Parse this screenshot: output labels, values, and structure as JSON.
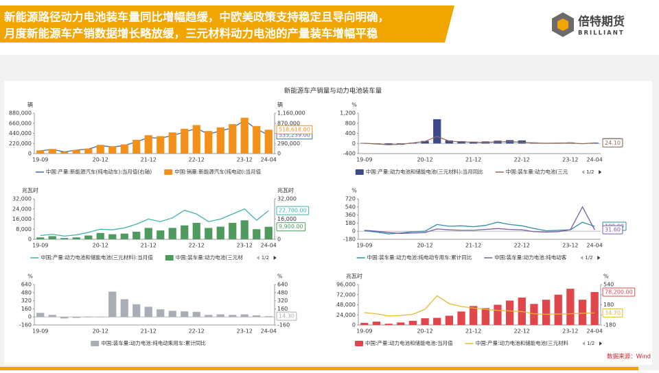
{
  "header": {
    "title_lines": [
      "新能源路径动力电池装车量同比增幅趋缓，中欧美政策支持稳定且导向明确，",
      "月度新能源车产销数据增长略放缓，三元材料动力电池的产量装车增幅平稳"
    ],
    "logo_name": "倍特期货",
    "logo_en": "BRILLIANT"
  },
  "chart_title": "新能源车产销量与动力电池装车量",
  "source": "数据来源：Wind",
  "chart_data": [
    {
      "type": "bar-line",
      "unit": "辆",
      "unit2": "辆",
      "categories": [
        "19-09",
        null,
        null,
        null,
        null,
        "20-12",
        null,
        null,
        null,
        "21-12",
        null,
        null,
        null,
        "22-12",
        null,
        null,
        null,
        "23-12",
        null,
        "24-04"
      ],
      "ylim": [
        0,
        880000
      ],
      "yticks": [
        0,
        {
          "value": 220000,
          "label": "220,000"
        },
        {
          "value": 440000,
          "label": "440,000"
        },
        {
          "value": 660000,
          "label": "660,000"
        },
        {
          "value": 880000,
          "label": "880,000"
        }
      ],
      "y2lim": [
        0,
        1160000
      ],
      "y2ticks": [
        0,
        {
          "value": 290000,
          "label": "290,000"
        },
        {
          "value": 580000,
          "label": "580,000"
        },
        {
          "value": 870000,
          "label": "870,000"
        },
        {
          "value": 1160000,
          "label": "1,160,000"
        }
      ],
      "series": [
        {
          "name": "中国:产量:新能源汽车(纯电动车):当月值(右轴)",
          "type": "line",
          "axis": "y2",
          "color": "#3a6ea5",
          "values": [
            80000,
            120000,
            50000,
            100000,
            130000,
            230000,
            190000,
            230000,
            340000,
            460000,
            440000,
            520000,
            620000,
            720000,
            560000,
            650000,
            740000,
            950000,
            700000,
            535239
          ],
          "value_label": "535,239.00"
        },
        {
          "name": "中国:销量:新能源汽车(纯电动):当月值",
          "type": "bar",
          "color": "#f39019",
          "values": [
            70000,
            100000,
            40000,
            80000,
            110000,
            190000,
            160000,
            200000,
            300000,
            400000,
            380000,
            460000,
            540000,
            620000,
            490000,
            570000,
            640000,
            780000,
            600000,
            518618
          ],
          "value_label": "518,618.00"
        }
      ]
    },
    {
      "type": "bar-line",
      "unit": "%",
      "legend_page": "1/2",
      "categories": [
        "19-09",
        null,
        null,
        null,
        null,
        "20-12",
        null,
        null,
        null,
        "21-12",
        null,
        null,
        null,
        "22-12",
        null,
        null,
        null,
        "23-12",
        null,
        "24-04"
      ],
      "ylim": [
        -400,
        1200
      ],
      "yticks": [
        -400,
        0,
        400,
        800,
        {
          "value": 1200,
          "label": "1,200"
        }
      ],
      "series": [
        {
          "name": "中国:产量:动力电池和储能电池(三元材料):当月同比",
          "type": "bar",
          "color": "#3d4a8a",
          "values": [
            20,
            -30,
            -60,
            -50,
            30,
            100,
            960,
            120,
            90,
            70,
            80,
            110,
            130,
            120,
            40,
            20,
            30,
            40,
            -20,
            30
          ],
          "value_label": "30.00"
        },
        {
          "name": "中国:装车量:动力电池(三元",
          "type": "line",
          "color": "#8a6a5a",
          "values": [
            10,
            -20,
            -50,
            -30,
            20,
            80,
            280,
            90,
            60,
            50,
            40,
            60,
            70,
            50,
            20,
            10,
            15,
            20,
            -10,
            24.1
          ],
          "value_label": "24.10"
        }
      ]
    },
    {
      "type": "bar-line",
      "unit": "兆瓦时",
      "unit2": "兆瓦时",
      "legend_page": "1/2",
      "categories": [
        "19-09",
        null,
        null,
        null,
        null,
        "20-12",
        null,
        null,
        null,
        "21-12",
        null,
        null,
        null,
        "22-12",
        null,
        null,
        null,
        "23-12",
        null,
        "24-04"
      ],
      "ylim": [
        0,
        32000
      ],
      "yticks": [
        0,
        {
          "value": 8000,
          "label": "8,000"
        },
        {
          "value": 16000,
          "label": "16,000"
        },
        {
          "value": 24000,
          "label": "24,000"
        },
        {
          "value": 32000,
          "label": "32,000"
        }
      ],
      "y2lim": [
        0,
        32000
      ],
      "y2ticks": [
        0,
        {
          "value": 16000,
          "label": "16,000"
        },
        {
          "value": 32000,
          "label": "32,000"
        }
      ],
      "series": [
        {
          "name": "中国:产量:动力电池和储能电池(三元材料):当月值",
          "type": "line",
          "axis": "y2",
          "color": "#3fb2b0",
          "values": [
            3000,
            4000,
            2500,
            3500,
            5500,
            8000,
            7500,
            9000,
            12000,
            16000,
            14000,
            17000,
            23000,
            20000,
            14000,
            16000,
            20000,
            24000,
            15000,
            22700
          ],
          "value_label": "22,700.00"
        },
        {
          "name": "中国:装车量:动力电池(三元材",
          "type": "bar",
          "color": "#4f9a5f",
          "values": [
            1500,
            2500,
            1000,
            1500,
            3000,
            5000,
            4000,
            4500,
            6000,
            9000,
            7000,
            9000,
            11000,
            13000,
            9000,
            10000,
            13000,
            15000,
            8000,
            9900
          ],
          "value_label": "9,900.00"
        }
      ]
    },
    {
      "type": "line",
      "unit": "%",
      "legend_page": "1/2",
      "categories": [
        "19-09",
        null,
        null,
        null,
        null,
        "20-12",
        null,
        null,
        null,
        "21-12",
        null,
        null,
        null,
        "22-12",
        null,
        null,
        null,
        "23-12",
        null,
        "24-04"
      ],
      "ylim": [
        -180,
        720
      ],
      "yticks": [
        -180,
        0,
        180,
        360,
        540,
        720
      ],
      "series": [
        {
          "name": "中国:装车量:动力电池:纯电动专用车:累计同比",
          "type": "line",
          "color": "#2f8fa8",
          "values": [
            10,
            -20,
            -60,
            -40,
            -10,
            0,
            150,
            110,
            120,
            100,
            130,
            200,
            150,
            120,
            60,
            10,
            20,
            30,
            200,
            109
          ],
          "value_label": "109.00"
        },
        {
          "name": "中国:装车量:动力电池:纯电动客",
          "type": "line",
          "color": "#7a5aa8",
          "values": [
            20,
            0,
            -30,
            -50,
            -40,
            -30,
            50,
            30,
            20,
            20,
            40,
            60,
            40,
            30,
            -10,
            -20,
            -10,
            30,
            540,
            31.6
          ],
          "value_label": "31.60"
        }
      ]
    },
    {
      "type": "bar",
      "unit": "%",
      "unit2": "%",
      "categories": [
        "19-09",
        null,
        null,
        null,
        null,
        "20-12",
        null,
        null,
        null,
        "21-12",
        null,
        null,
        null,
        "22-12",
        null,
        null,
        null,
        "23-12",
        null,
        "24-04"
      ],
      "ylim": [
        -160,
        640
      ],
      "yticks": [
        -160,
        0,
        160,
        320,
        480,
        640
      ],
      "y2lim": [
        -160,
        640
      ],
      "y2ticks": [
        -160,
        160,
        320,
        480,
        640
      ],
      "series": [
        {
          "name": "中国:装车量:动力电池:纯电动乘用车:累计同比",
          "type": "bar",
          "color": "#a9adb5",
          "values": [
            80,
            40,
            -30,
            -20,
            -10,
            0,
            500,
            350,
            250,
            200,
            150,
            120,
            110,
            100,
            40,
            50,
            40,
            50,
            30,
            14.3
          ],
          "value_label": "14.30"
        }
      ]
    },
    {
      "type": "bar-line",
      "unit": "兆瓦时",
      "unit2": "%",
      "legend_page": "1/2",
      "categories": [
        "19-09",
        null,
        null,
        null,
        null,
        "20-12",
        null,
        null,
        null,
        "21-12",
        null,
        null,
        null,
        "22-12",
        null,
        null,
        null,
        "23-12",
        null,
        "24-04"
      ],
      "ylim": [
        0,
        96000
      ],
      "yticks": [
        0,
        {
          "value": 24000,
          "label": "24,000"
        },
        {
          "value": 48000,
          "label": "48,000"
        },
        {
          "value": 72000,
          "label": "72,000"
        },
        {
          "value": 96000,
          "label": "96,000"
        }
      ],
      "y2lim": [
        -180,
        540
      ],
      "y2ticks": [
        -180,
        0,
        180,
        360,
        540
      ],
      "series": [
        {
          "name": "中国:产量:动力电池和储能电池:当月值",
          "type": "bar",
          "color": "#e0474c",
          "values": [
            5000,
            8000,
            3000,
            6000,
            10000,
            16000,
            17000,
            22000,
            32000,
            45000,
            40000,
            48000,
            58000,
            65000,
            50000,
            60000,
            72000,
            86000,
            60000,
            78200
          ],
          "value_label": "78,200.00"
        },
        {
          "name": "中国:产量:动力电池和储能电池(三元材料",
          "type": "line",
          "axis": "y2",
          "color": "#e8b830",
          "values": [
            40,
            20,
            -20,
            -10,
            10,
            100,
            340,
            200,
            150,
            120,
            100,
            80,
            70,
            60,
            20,
            10,
            15,
            20,
            30,
            34.7
          ],
          "value_label": "34.70"
        }
      ]
    }
  ]
}
